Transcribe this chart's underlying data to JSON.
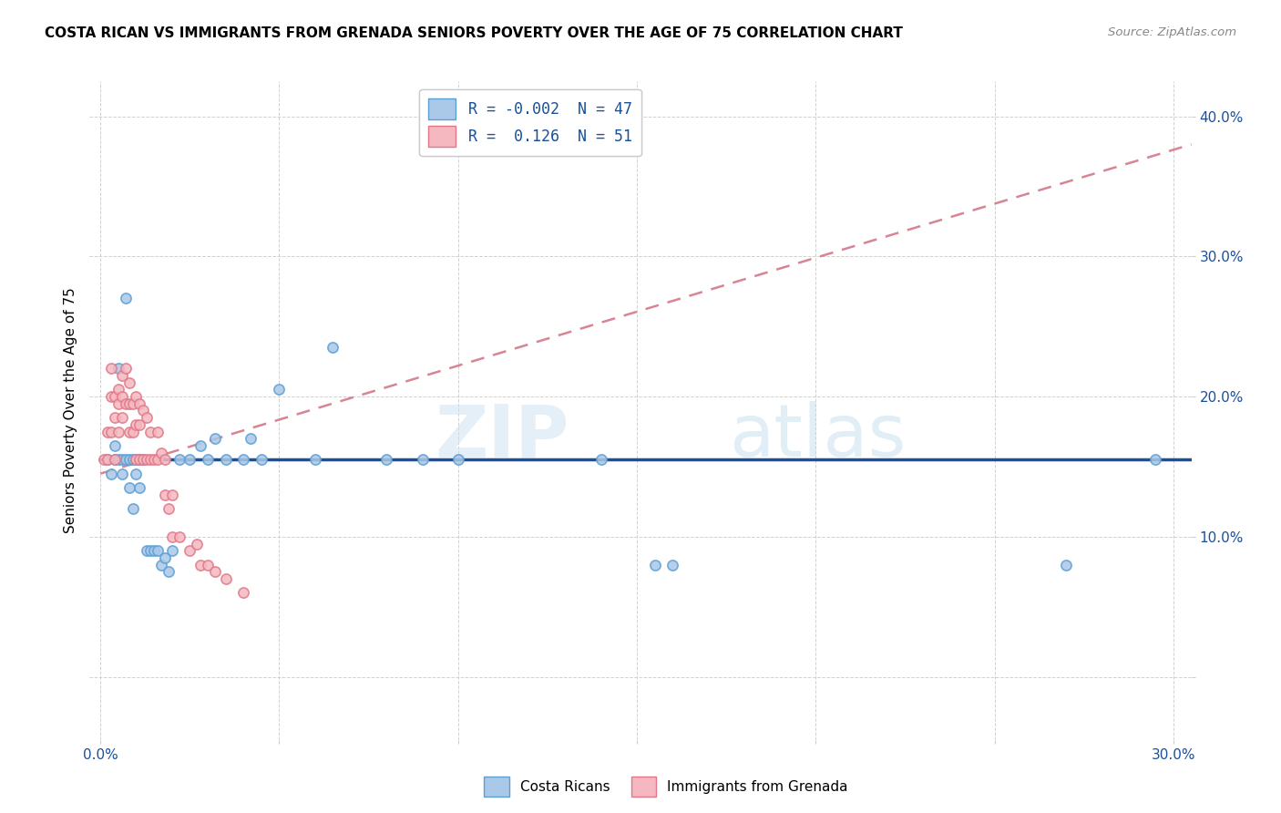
{
  "title": "COSTA RICAN VS IMMIGRANTS FROM GRENADA SENIORS POVERTY OVER THE AGE OF 75 CORRELATION CHART",
  "source": "Source: ZipAtlas.com",
  "ylabel": "Seniors Poverty Over the Age of 75",
  "xlim": [
    -0.003,
    0.305
  ],
  "ylim": [
    -0.045,
    0.425
  ],
  "xtick_positions": [
    0.0,
    0.05,
    0.1,
    0.15,
    0.2,
    0.25,
    0.3
  ],
  "xticklabels": [
    "0.0%",
    "",
    "",
    "",
    "",
    "",
    "30.0%"
  ],
  "ytick_positions": [
    0.0,
    0.1,
    0.2,
    0.3,
    0.4
  ],
  "yticklabels": [
    "",
    "10.0%",
    "20.0%",
    "30.0%",
    "40.0%"
  ],
  "blue_label": "Costa Ricans",
  "pink_label": "Immigrants from Grenada",
  "blue_color_fill": "#aac8e8",
  "blue_color_edge": "#5b9fd4",
  "pink_color_fill": "#f5b8c0",
  "pink_color_edge": "#e07888",
  "trend_blue_color": "#1a4f9c",
  "trend_pink_color": "#d07080",
  "legend_blue_text": "R = -0.002  N = 47",
  "legend_pink_text": "R =  0.126  N = 51",
  "legend_text_color": "#1a4f9c",
  "axis_tick_color": "#1a4f9c",
  "blue_scatter_x": [
    0.002,
    0.003,
    0.004,
    0.004,
    0.005,
    0.005,
    0.006,
    0.006,
    0.007,
    0.007,
    0.008,
    0.008,
    0.009,
    0.009,
    0.01,
    0.01,
    0.011,
    0.011,
    0.012,
    0.013,
    0.014,
    0.015,
    0.016,
    0.017,
    0.018,
    0.019,
    0.02,
    0.022,
    0.025,
    0.028,
    0.03,
    0.032,
    0.035,
    0.04,
    0.042,
    0.045,
    0.05,
    0.06,
    0.065,
    0.08,
    0.09,
    0.1,
    0.14,
    0.155,
    0.16,
    0.27,
    0.295
  ],
  "blue_scatter_y": [
    0.155,
    0.145,
    0.165,
    0.155,
    0.22,
    0.155,
    0.155,
    0.145,
    0.27,
    0.155,
    0.155,
    0.135,
    0.12,
    0.155,
    0.155,
    0.145,
    0.155,
    0.135,
    0.155,
    0.09,
    0.09,
    0.09,
    0.09,
    0.08,
    0.085,
    0.075,
    0.09,
    0.155,
    0.155,
    0.165,
    0.155,
    0.17,
    0.155,
    0.155,
    0.17,
    0.155,
    0.205,
    0.155,
    0.235,
    0.155,
    0.155,
    0.155,
    0.155,
    0.08,
    0.08,
    0.08,
    0.155
  ],
  "pink_scatter_x": [
    0.001,
    0.002,
    0.002,
    0.003,
    0.003,
    0.003,
    0.004,
    0.004,
    0.004,
    0.005,
    0.005,
    0.005,
    0.006,
    0.006,
    0.006,
    0.007,
    0.007,
    0.008,
    0.008,
    0.008,
    0.009,
    0.009,
    0.01,
    0.01,
    0.01,
    0.011,
    0.011,
    0.011,
    0.012,
    0.012,
    0.013,
    0.013,
    0.014,
    0.014,
    0.015,
    0.016,
    0.016,
    0.017,
    0.018,
    0.018,
    0.019,
    0.02,
    0.02,
    0.022,
    0.025,
    0.027,
    0.028,
    0.03,
    0.032,
    0.035,
    0.04
  ],
  "pink_scatter_y": [
    0.155,
    0.175,
    0.155,
    0.22,
    0.2,
    0.175,
    0.2,
    0.185,
    0.155,
    0.205,
    0.195,
    0.175,
    0.215,
    0.2,
    0.185,
    0.22,
    0.195,
    0.21,
    0.195,
    0.175,
    0.195,
    0.175,
    0.2,
    0.18,
    0.155,
    0.195,
    0.18,
    0.155,
    0.19,
    0.155,
    0.185,
    0.155,
    0.175,
    0.155,
    0.155,
    0.175,
    0.155,
    0.16,
    0.155,
    0.13,
    0.12,
    0.13,
    0.1,
    0.1,
    0.09,
    0.095,
    0.08,
    0.08,
    0.075,
    0.07,
    0.06
  ],
  "blue_trend_x": [
    0.0,
    0.305
  ],
  "blue_trend_y": [
    0.155,
    0.155
  ],
  "pink_trend_x": [
    0.0,
    0.305
  ],
  "pink_trend_y": [
    0.145,
    0.38
  ]
}
